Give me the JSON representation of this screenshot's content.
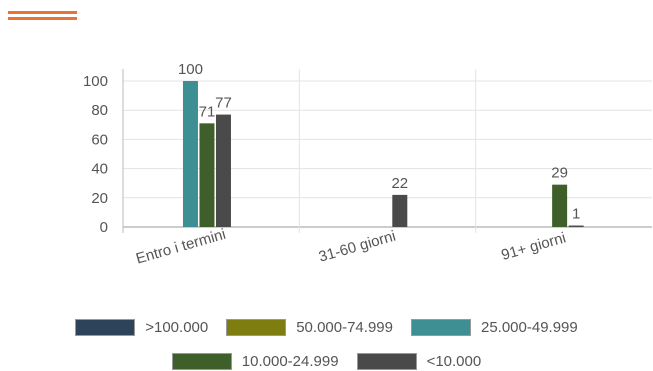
{
  "accent_color": "#e8733a",
  "chart_data": {
    "type": "bar",
    "categories": [
      "Entro i termini",
      "31-60 giorni",
      "91+ giorni"
    ],
    "ylim": [
      0,
      100
    ],
    "yticks": [
      0,
      20,
      40,
      60,
      80,
      100
    ],
    "grid": true,
    "legend_placement": "bottom",
    "series": [
      {
        "name": ">100.000",
        "color": "#2d4359",
        "values": [
          null,
          null,
          null
        ]
      },
      {
        "name": "50.000-74.999",
        "color": "#7d7d10",
        "values": [
          null,
          null,
          null
        ]
      },
      {
        "name": "25.000-49.999",
        "color": "#3d8f94",
        "values": [
          100,
          null,
          null
        ]
      },
      {
        "name": "10.000-24.999",
        "color": "#3f5f2a",
        "values": [
          71,
          null,
          29
        ]
      },
      {
        "name": "<10.000",
        "color": "#4a4a4a",
        "values": [
          77,
          22,
          1
        ]
      }
    ]
  }
}
